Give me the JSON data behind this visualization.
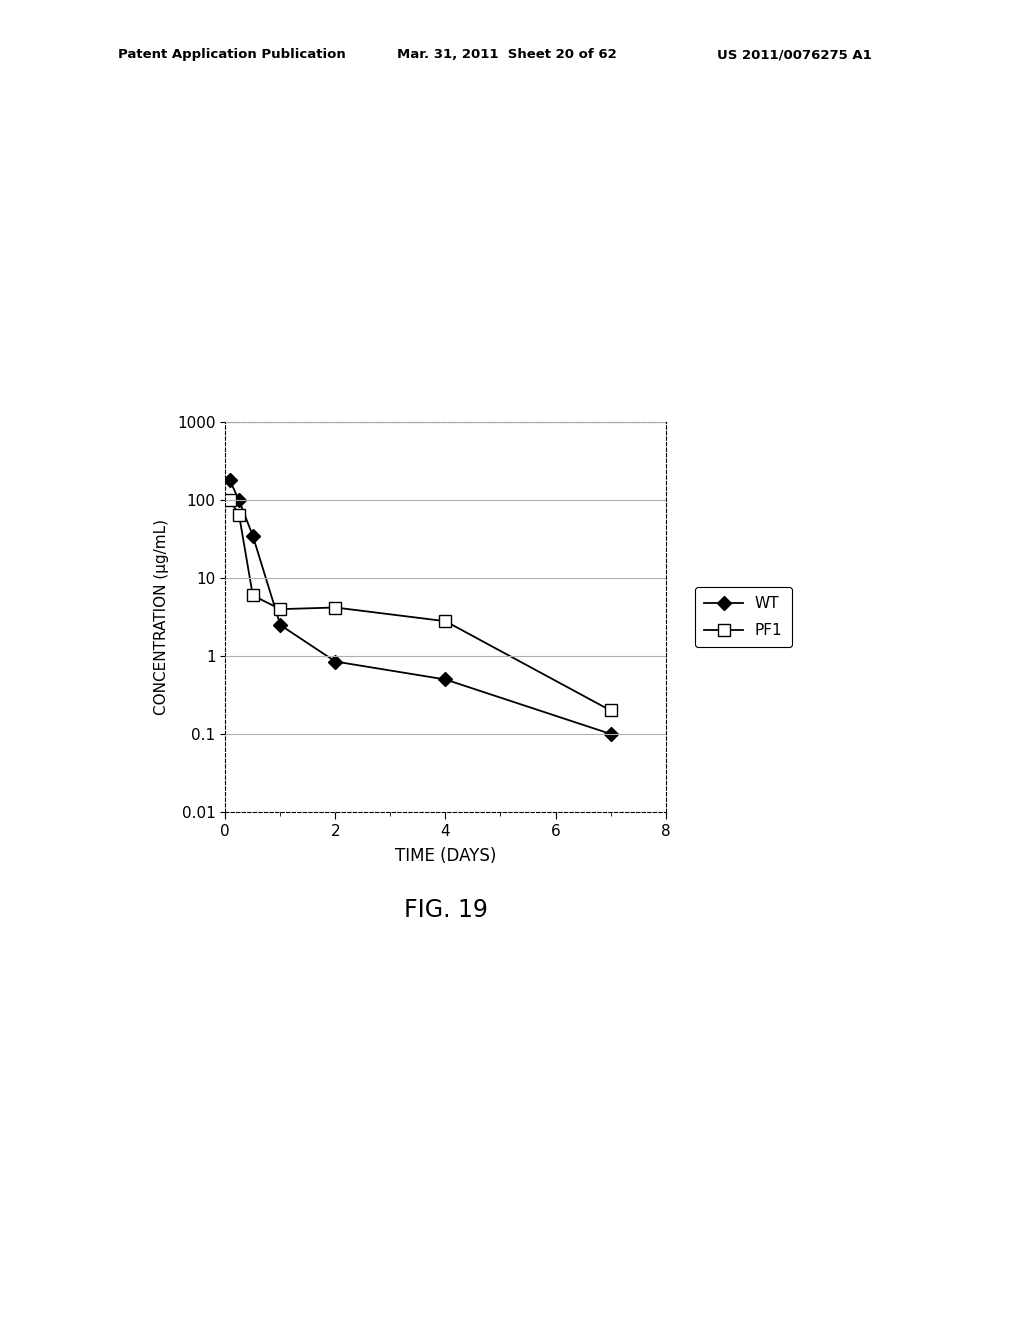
{
  "wt_x": [
    0.083,
    0.25,
    0.5,
    1.0,
    2.0,
    4.0,
    7.0
  ],
  "wt_y": [
    180,
    100,
    35,
    2.5,
    0.85,
    0.5,
    0.1
  ],
  "pf1_x": [
    0.083,
    0.25,
    0.5,
    1.0,
    2.0,
    4.0,
    7.0
  ],
  "pf1_y": [
    100,
    65,
    6.0,
    4.0,
    4.2,
    2.8,
    0.2
  ],
  "wt_label": "WT",
  "pf1_label": "PF1",
  "xlabel": "TIME (DAYS)",
  "ylabel": "CONCENTRATION (μg/mL)",
  "fig_label": "FIG. 19",
  "xlim": [
    0,
    8
  ],
  "ylim_log": [
    0.01,
    1000
  ],
  "xticks": [
    0,
    2,
    4,
    6,
    8
  ],
  "yticks": [
    0.01,
    0.1,
    1,
    10,
    100,
    1000
  ],
  "ytick_labels": [
    "0.01",
    "0.1",
    "1",
    "10",
    "100",
    "1000"
  ],
  "header_left": "Patent Application Publication",
  "header_mid": "Mar. 31, 2011  Sheet 20 of 62",
  "header_right": "US 2011/0076275 A1",
  "background_color": "#ffffff",
  "line_color": "#000000",
  "grid_color": "#b0b0b0"
}
